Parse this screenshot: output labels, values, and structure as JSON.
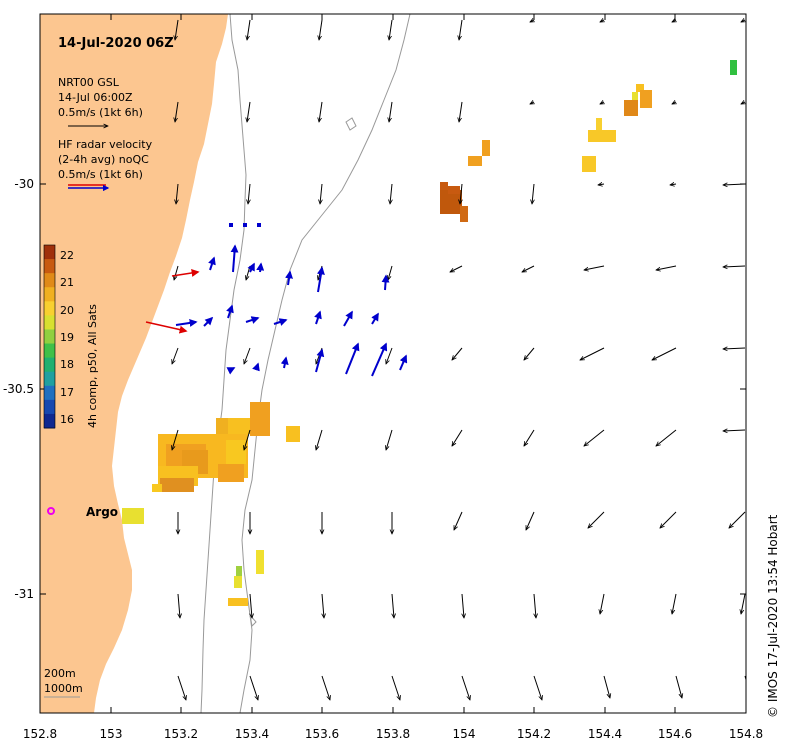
{
  "title": "14-Jul-2020 06Z",
  "model_legend": {
    "line1": "NRT00 GSL",
    "line2": "14-Jul 06:00Z",
    "line3": "0.5m/s (1kt 6h)"
  },
  "radar_legend": {
    "line1": "HF radar velocity",
    "line2": "(2-4h avg) noQC",
    "line3": "0.5m/s (1kt 6h)"
  },
  "colorbar": {
    "label": "4h comp, p50, All Sats",
    "ticks": [
      "22",
      "21",
      "20",
      "19",
      "18",
      "17",
      "16"
    ],
    "colors": [
      "#a0300a",
      "#c85a10",
      "#e08a18",
      "#f0b020",
      "#f8d030",
      "#d8e030",
      "#90d040",
      "#40c048",
      "#20b070",
      "#20a0a0",
      "#2070c0",
      "#1848b0",
      "#102890"
    ]
  },
  "axes": {
    "x_ticks": [
      "152.8",
      "153",
      "153.2",
      "153.4",
      "153.6",
      "153.8",
      "154",
      "154.2",
      "154.4",
      "154.6",
      "154.8"
    ],
    "y_ticks": [
      "-30",
      "-30.5",
      "-31"
    ]
  },
  "argo_label": "Argo",
  "depth_legend": {
    "line1": "200m",
    "line2": "1000m"
  },
  "credit": "©  IMOS 17-Jul-2020 13:54 Hobart",
  "colors": {
    "land": "#fcc690",
    "arrow": "#000000",
    "radar_arrow": "#0000cc",
    "red_arrow": "#dd0000",
    "argo": "#ee00ee",
    "isobath": "#999999"
  }
}
